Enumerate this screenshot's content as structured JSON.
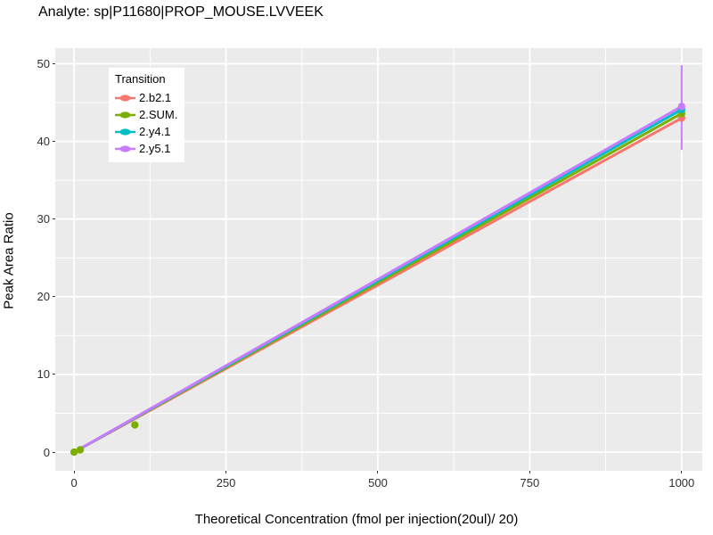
{
  "chart_data": {
    "type": "line",
    "title": "Analyte: sp|P11680|PROP_MOUSE.LVVEEK",
    "xlabel": "Theoretical Concentration (fmol per injection(20ul)/ 20)",
    "ylabel": "Peak Area Ratio",
    "xlim": [
      -31,
      1034
    ],
    "ylim": [
      -2.4,
      52.0
    ],
    "x_ticks": [
      0,
      250,
      500,
      750,
      1000
    ],
    "y_ticks": [
      0,
      10,
      20,
      30,
      40,
      50
    ],
    "grid": "major-and-minor, white on grey panel",
    "panel_background": "#EBEBEB",
    "grid_color": "#FFFFFF",
    "legend_title": "Transition",
    "legend_position": "top-left-inside",
    "series": [
      {
        "name": "2.b2.1",
        "color": "#F8766D",
        "line": [
          [
            0,
            0
          ],
          [
            1000,
            43.0
          ]
        ],
        "points": [
          [
            1000,
            43.0
          ]
        ]
      },
      {
        "name": "2.SUM.",
        "color": "#7CAE00",
        "line": [
          [
            0,
            0
          ],
          [
            1000,
            43.6
          ]
        ],
        "points": [
          [
            0,
            0
          ],
          [
            10,
            0.3
          ],
          [
            100,
            3.5
          ],
          [
            1000,
            43.6
          ]
        ]
      },
      {
        "name": "2.y4.1",
        "color": "#00BFC4",
        "line": [
          [
            0,
            0
          ],
          [
            1000,
            44.1
          ]
        ],
        "points": [
          [
            1000,
            44.1
          ]
        ]
      },
      {
        "name": "2.y5.1",
        "color": "#C77CFF",
        "line": [
          [
            0,
            0
          ],
          [
            1000,
            44.5
          ]
        ],
        "points": [
          [
            1000,
            44.5
          ]
        ],
        "error_bars": [
          {
            "x": 1000,
            "ymin": 38.9,
            "ymax": 49.8
          }
        ]
      }
    ]
  }
}
